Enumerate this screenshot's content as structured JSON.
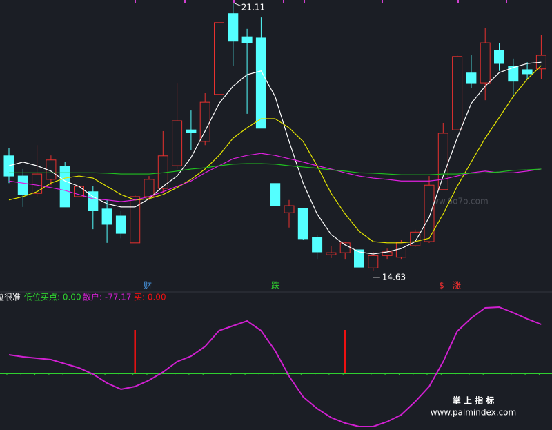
{
  "chart_data": [
    {
      "type": "candlestick",
      "ylim": [
        14.41,
        21.19
      ],
      "up_color": "#e8312f",
      "down_color": "#54ffff",
      "open": [
        17.41,
        16.92,
        16.5,
        16.84,
        17.15,
        16.42,
        16.54,
        16.12,
        15.95,
        15.3,
        16.42,
        16.62,
        17.17,
        18.04,
        17.76,
        18.9,
        20.86,
        20.3,
        20.27,
        16.74,
        16.03,
        16.13,
        15.43,
        15.01,
        15.06,
        15.13,
        14.69,
        14.99,
        14.95,
        15.23,
        15.33,
        16.59,
        18.04,
        19.42,
        19.18,
        19.97,
        19.58,
        19.5,
        19.52
      ],
      "high": [
        17.59,
        17.09,
        17.67,
        17.42,
        17.26,
        16.8,
        16.67,
        16.34,
        16.08,
        16.47,
        16.92,
        18.01,
        19.18,
        18.51,
        18.93,
        20.69,
        21.11,
        20.49,
        20.77,
        16.74,
        16.34,
        16.13,
        15.5,
        15.23,
        15.33,
        15.25,
        15.08,
        15.16,
        15.37,
        15.62,
        16.92,
        18.21,
        19.85,
        19.85,
        20.52,
        20.15,
        19.77,
        19.68,
        20.35
      ],
      "low": [
        16.75,
        16.17,
        16.42,
        16.7,
        16.17,
        16.17,
        15.63,
        15.3,
        15.41,
        15.3,
        16.34,
        16.5,
        17.09,
        17.54,
        17.67,
        18.85,
        19.6,
        18.43,
        18.08,
        16.2,
        15.67,
        15.37,
        14.91,
        14.93,
        14.91,
        14.66,
        14.63,
        14.91,
        14.91,
        15.2,
        15.3,
        16.59,
        18.04,
        19.05,
        18.76,
        19.47,
        18.85,
        19.27,
        19.27
      ],
      "close": [
        16.92,
        16.47,
        16.97,
        17.31,
        16.17,
        16.67,
        16.08,
        15.75,
        15.53,
        16.42,
        16.84,
        17.41,
        18.26,
        17.98,
        18.71,
        20.64,
        20.19,
        20.15,
        18.08,
        16.2,
        16.2,
        15.4,
        15.08,
        15.06,
        15.3,
        14.71,
        14.99,
        15.08,
        15.31,
        15.56,
        16.7,
        17.96,
        19.82,
        19.18,
        20.15,
        19.65,
        19.22,
        19.4,
        19.85
      ],
      "series": [
        {
          "color": "#ffffff",
          "values": [
            17.17,
            17.26,
            17.17,
            17.04,
            16.8,
            16.67,
            16.42,
            16.25,
            16.17,
            16.17,
            16.37,
            16.67,
            16.92,
            17.37,
            18.01,
            18.68,
            19.1,
            19.38,
            19.47,
            18.85,
            17.76,
            16.75,
            16.0,
            15.5,
            15.25,
            15.08,
            15.03,
            15.08,
            15.16,
            15.33,
            15.92,
            16.92,
            17.84,
            18.68,
            19.1,
            19.43,
            19.55,
            19.65,
            19.68
          ]
        },
        {
          "color": "#e6e600",
          "values": [
            16.34,
            16.42,
            16.54,
            16.75,
            16.87,
            16.92,
            16.87,
            16.67,
            16.47,
            16.34,
            16.37,
            16.47,
            16.64,
            16.84,
            17.09,
            17.42,
            17.84,
            18.09,
            18.31,
            18.31,
            18.09,
            17.76,
            17.17,
            16.5,
            16.0,
            15.58,
            15.33,
            15.3,
            15.3,
            15.33,
            15.41,
            16.0,
            16.67,
            17.26,
            17.84,
            18.34,
            18.85,
            19.27,
            19.6
          ]
        },
        {
          "color": "#e020e0",
          "values": [
            16.8,
            16.75,
            16.7,
            16.64,
            16.57,
            16.47,
            16.37,
            16.34,
            16.3,
            16.34,
            16.42,
            16.54,
            16.67,
            16.8,
            17.0,
            17.17,
            17.34,
            17.42,
            17.47,
            17.42,
            17.34,
            17.26,
            17.17,
            17.09,
            17.0,
            16.92,
            16.87,
            16.84,
            16.8,
            16.8,
            16.8,
            16.84,
            16.92,
            17.0,
            17.04,
            17.0,
            17.0,
            17.04,
            17.09
          ]
        },
        {
          "color": "#20c020",
          "values": [
            17.0,
            17.0,
            17.0,
            17.0,
            17.0,
            17.0,
            17.0,
            16.99,
            16.97,
            16.97,
            16.97,
            17.0,
            17.04,
            17.09,
            17.12,
            17.17,
            17.21,
            17.22,
            17.22,
            17.21,
            17.17,
            17.14,
            17.11,
            17.07,
            17.04,
            17.0,
            16.99,
            16.97,
            16.95,
            16.95,
            16.95,
            16.97,
            16.97,
            16.99,
            17.0,
            17.02,
            17.06,
            17.07,
            17.09
          ]
        }
      ],
      "max_label": 21.11,
      "min_label": 14.63,
      "signals": [
        "财",
        "跌",
        "$",
        "涨"
      ],
      "watermark": "www.6o7o.com"
    },
    {
      "type": "line",
      "ylim": [
        -82,
        112
      ],
      "legend_texts": [
        "位很准",
        "低位买点: 0.00",
        "散户: -77.17",
        "买: 0.00"
      ],
      "baseline": 0,
      "baseline_color": "#30d030",
      "series": [
        {
          "color": "#d020d0",
          "values": [
            27,
            24,
            22,
            20,
            14,
            8,
            -1,
            -14,
            -23,
            -19,
            -10,
            2,
            17,
            25,
            39,
            62,
            69,
            76,
            62,
            33,
            -4,
            -34,
            -51,
            -64,
            -72,
            -77,
            -77,
            -70,
            -60,
            -41,
            -19,
            17,
            61,
            80,
            95,
            96,
            88,
            79,
            71
          ]
        },
        {
          "color": "#ee1111",
          "bars": true,
          "values": [
            null,
            null,
            null,
            null,
            null,
            null,
            null,
            null,
            null,
            63,
            null,
            null,
            null,
            null,
            null,
            null,
            null,
            null,
            null,
            null,
            null,
            null,
            null,
            null,
            63,
            null,
            null,
            null,
            null,
            null,
            null,
            null,
            null,
            null,
            null,
            null,
            null,
            null,
            null
          ]
        }
      ],
      "brand": "掌 上 指 标",
      "site": "www.palmindex.com"
    }
  ]
}
